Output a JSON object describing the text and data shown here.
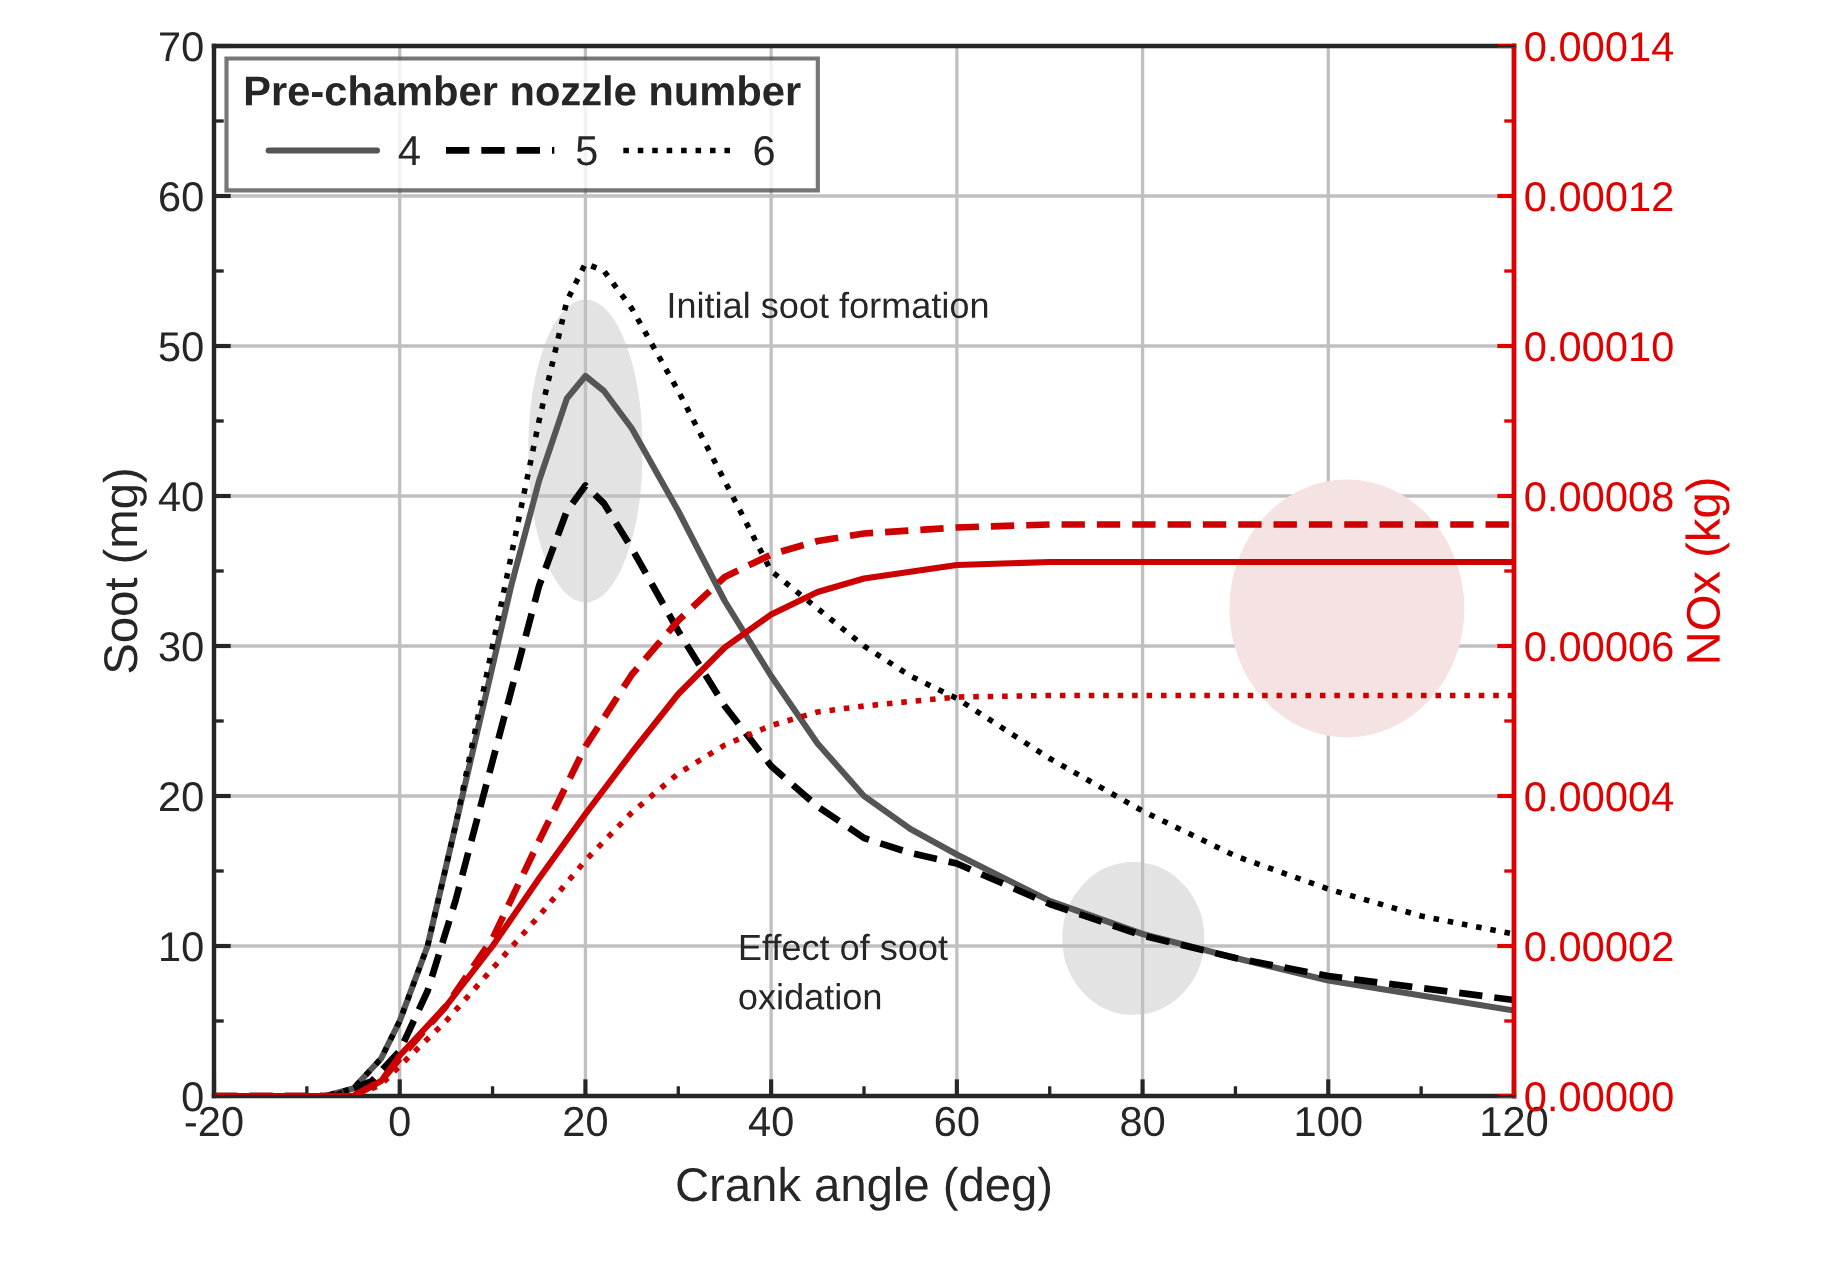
{
  "chart_data": {
    "type": "line",
    "xlabel": "Crank angle (deg)",
    "ylabel": "Soot (mg)",
    "y2label": "NOx (kg)",
    "legend_title": "Pre-chamber nozzle number",
    "xlim": [
      -20,
      120
    ],
    "xticks": [
      -20,
      0,
      20,
      40,
      60,
      80,
      100,
      120
    ],
    "ylim": [
      0,
      70
    ],
    "yticks": [
      0,
      10,
      20,
      30,
      40,
      50,
      60,
      70
    ],
    "y2lim": [
      0,
      0.00014
    ],
    "y2ticks": [
      {
        "value": 0,
        "label": "0.00000"
      },
      {
        "value": 2e-05,
        "label": "0.00002"
      },
      {
        "value": 4e-05,
        "label": "0.00004"
      },
      {
        "value": 6e-05,
        "label": "0.00006"
      },
      {
        "value": 8e-05,
        "label": "0.00008"
      },
      {
        "value": 0.0001,
        "label": "0.00010"
      },
      {
        "value": 0.00012,
        "label": "0.00012"
      },
      {
        "value": 0.00014,
        "label": "0.00014"
      }
    ],
    "grid": true,
    "legend": "top left",
    "annotations": [
      "Initial soot formation",
      "Effect of soot oxidation"
    ],
    "series": [
      {
        "name": "4",
        "color": "#555555",
        "line_style": "solid",
        "x": [
          -20,
          -8,
          -5,
          -2,
          0,
          3,
          6,
          9,
          12,
          15,
          18,
          20,
          22,
          25,
          30,
          35,
          40,
          45,
          50,
          55,
          60,
          70,
          80,
          90,
          100,
          110,
          120
        ],
        "values": [
          0,
          0,
          0.5,
          2.5,
          5,
          10,
          18,
          26,
          34,
          41,
          46.5,
          48,
          47,
          44.5,
          39,
          33,
          28,
          23.5,
          20,
          17.8,
          16.1,
          13,
          10.8,
          9.2,
          7.7,
          6.7,
          5.7
        ]
      },
      {
        "name": "5",
        "color": "#000000",
        "line_style": "dashed",
        "x": [
          -20,
          -7,
          -3,
          0,
          3,
          6,
          9,
          12,
          15,
          18,
          20,
          22,
          25,
          30,
          35,
          40,
          45,
          50,
          55,
          60,
          70,
          80,
          90,
          100,
          110,
          120
        ],
        "values": [
          0,
          0,
          1,
          3,
          7,
          13,
          20,
          27,
          34,
          39,
          40.7,
          39.5,
          36.5,
          31,
          26,
          22,
          19.3,
          17.2,
          16.2,
          15.5,
          12.8,
          10.7,
          9.2,
          8,
          7.2,
          6.4
        ]
      },
      {
        "name": "6",
        "color": "#000000",
        "line_style": "dotted",
        "x": [
          -20,
          -8,
          -5,
          -2,
          0,
          3,
          6,
          9,
          12,
          15,
          18,
          20,
          22,
          25,
          30,
          35,
          40,
          45,
          50,
          55,
          60,
          70,
          80,
          90,
          100,
          110,
          120
        ],
        "values": [
          0,
          0,
          0.5,
          2.5,
          5,
          10,
          18,
          27,
          36,
          45,
          53,
          55.5,
          55,
          52.5,
          47,
          41,
          35,
          32.5,
          30,
          28,
          26.5,
          22.5,
          19,
          16,
          13.8,
          12,
          10.8
        ]
      },
      {
        "color": "#cc0000",
        "line_style": "solid",
        "axis": "y2",
        "x": [
          -20,
          -5,
          -2,
          0,
          5,
          10,
          15,
          20,
          25,
          30,
          35,
          40,
          45,
          50,
          60,
          70,
          80,
          100,
          120
        ],
        "values": [
          0,
          0,
          2e-06,
          5.4e-06,
          1.2e-05,
          2e-05,
          2.9e-05,
          3.76e-05,
          4.58e-05,
          5.36e-05,
          5.98e-05,
          6.42e-05,
          6.72e-05,
          6.9e-05,
          7.08e-05,
          7.12e-05,
          7.12e-05,
          7.12e-05,
          7.12e-05
        ]
      },
      {
        "color": "#cc0000",
        "line_style": "dashed",
        "axis": "y2",
        "x": [
          -20,
          -5,
          -2,
          0,
          5,
          10,
          15,
          20,
          25,
          30,
          35,
          40,
          45,
          50,
          60,
          70,
          120
        ],
        "values": [
          0,
          0,
          2e-06,
          5e-06,
          1.2e-05,
          2.1e-05,
          3.4e-05,
          4.66e-05,
          5.62e-05,
          6.34e-05,
          6.92e-05,
          7.22e-05,
          7.4e-05,
          7.5e-05,
          7.58e-05,
          7.62e-05,
          7.62e-05
        ]
      },
      {
        "color": "#cc0000",
        "line_style": "dotted",
        "axis": "y2",
        "x": [
          -20,
          -5,
          -2,
          0,
          5,
          10,
          15,
          20,
          25,
          30,
          35,
          40,
          45,
          50,
          60,
          70,
          120
        ],
        "values": [
          0,
          0,
          1.5e-06,
          4e-06,
          1e-05,
          1.7e-05,
          2.4e-05,
          3.14e-05,
          3.78e-05,
          4.3e-05,
          4.68e-05,
          4.94e-05,
          5.12e-05,
          5.2e-05,
          5.32e-05,
          5.34e-05,
          5.34e-05
        ]
      }
    ]
  }
}
